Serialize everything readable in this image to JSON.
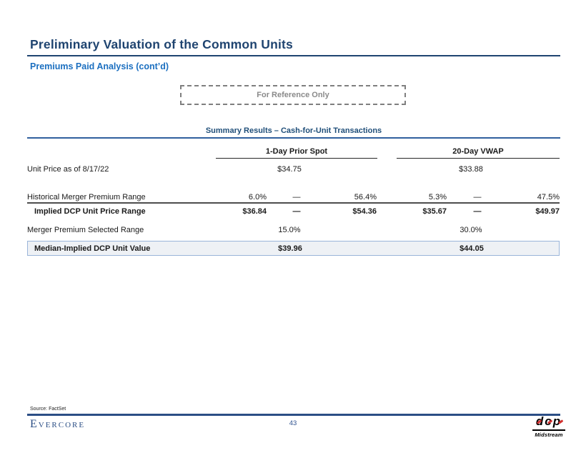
{
  "slide": {
    "title": "Preliminary Valuation of the Common Units",
    "subtitle": "Premiums Paid Analysis (cont’d)",
    "reference_label": "For Reference Only"
  },
  "table": {
    "title": "Summary Results – Cash-for-Unit Transactions",
    "column_groups": [
      {
        "label": "1-Day Prior Spot"
      },
      {
        "label": "20-Day VWAP"
      }
    ],
    "rows": {
      "unit_price": {
        "label": "Unit Price as of 8/17/22",
        "spot": "$34.75",
        "vwap": "$33.88"
      },
      "premium_range": {
        "label": "Historical Merger Premium Range",
        "spot_low": "6.0%",
        "spot_dash": "—",
        "spot_high": "56.4%",
        "vwap_low": "5.3%",
        "vwap_dash": "—",
        "vwap_high": "47.5%"
      },
      "implied_price": {
        "label": "Implied DCP Unit Price Range",
        "spot_low": "$36.84",
        "spot_dash": "—",
        "spot_high": "$54.36",
        "vwap_low": "$35.67",
        "vwap_dash": "—",
        "vwap_high": "$49.97"
      },
      "selected_range": {
        "label": "Merger Premium Selected Range",
        "spot": "15.0%",
        "vwap": "30.0%"
      },
      "median_value": {
        "label": "Median-Implied DCP Unit Value",
        "spot": "$39.96",
        "vwap": "$44.05"
      }
    }
  },
  "footer": {
    "source": "Source: FactSet",
    "brand": "Evercore",
    "page_number": "43",
    "logo": {
      "name": "dcp",
      "tagline": "Midstream"
    }
  },
  "colors": {
    "title_navy": "#1F4470",
    "subtitle_blue": "#1B6FC0",
    "table_header_blue": "#1F4E79",
    "reference_gray": "#8A8A8A",
    "highlight_fill": "#EEF1F5",
    "highlight_border": "#9AB5D9",
    "footer_navy": "#2B4E85",
    "logo_red": "#D3302F"
  }
}
